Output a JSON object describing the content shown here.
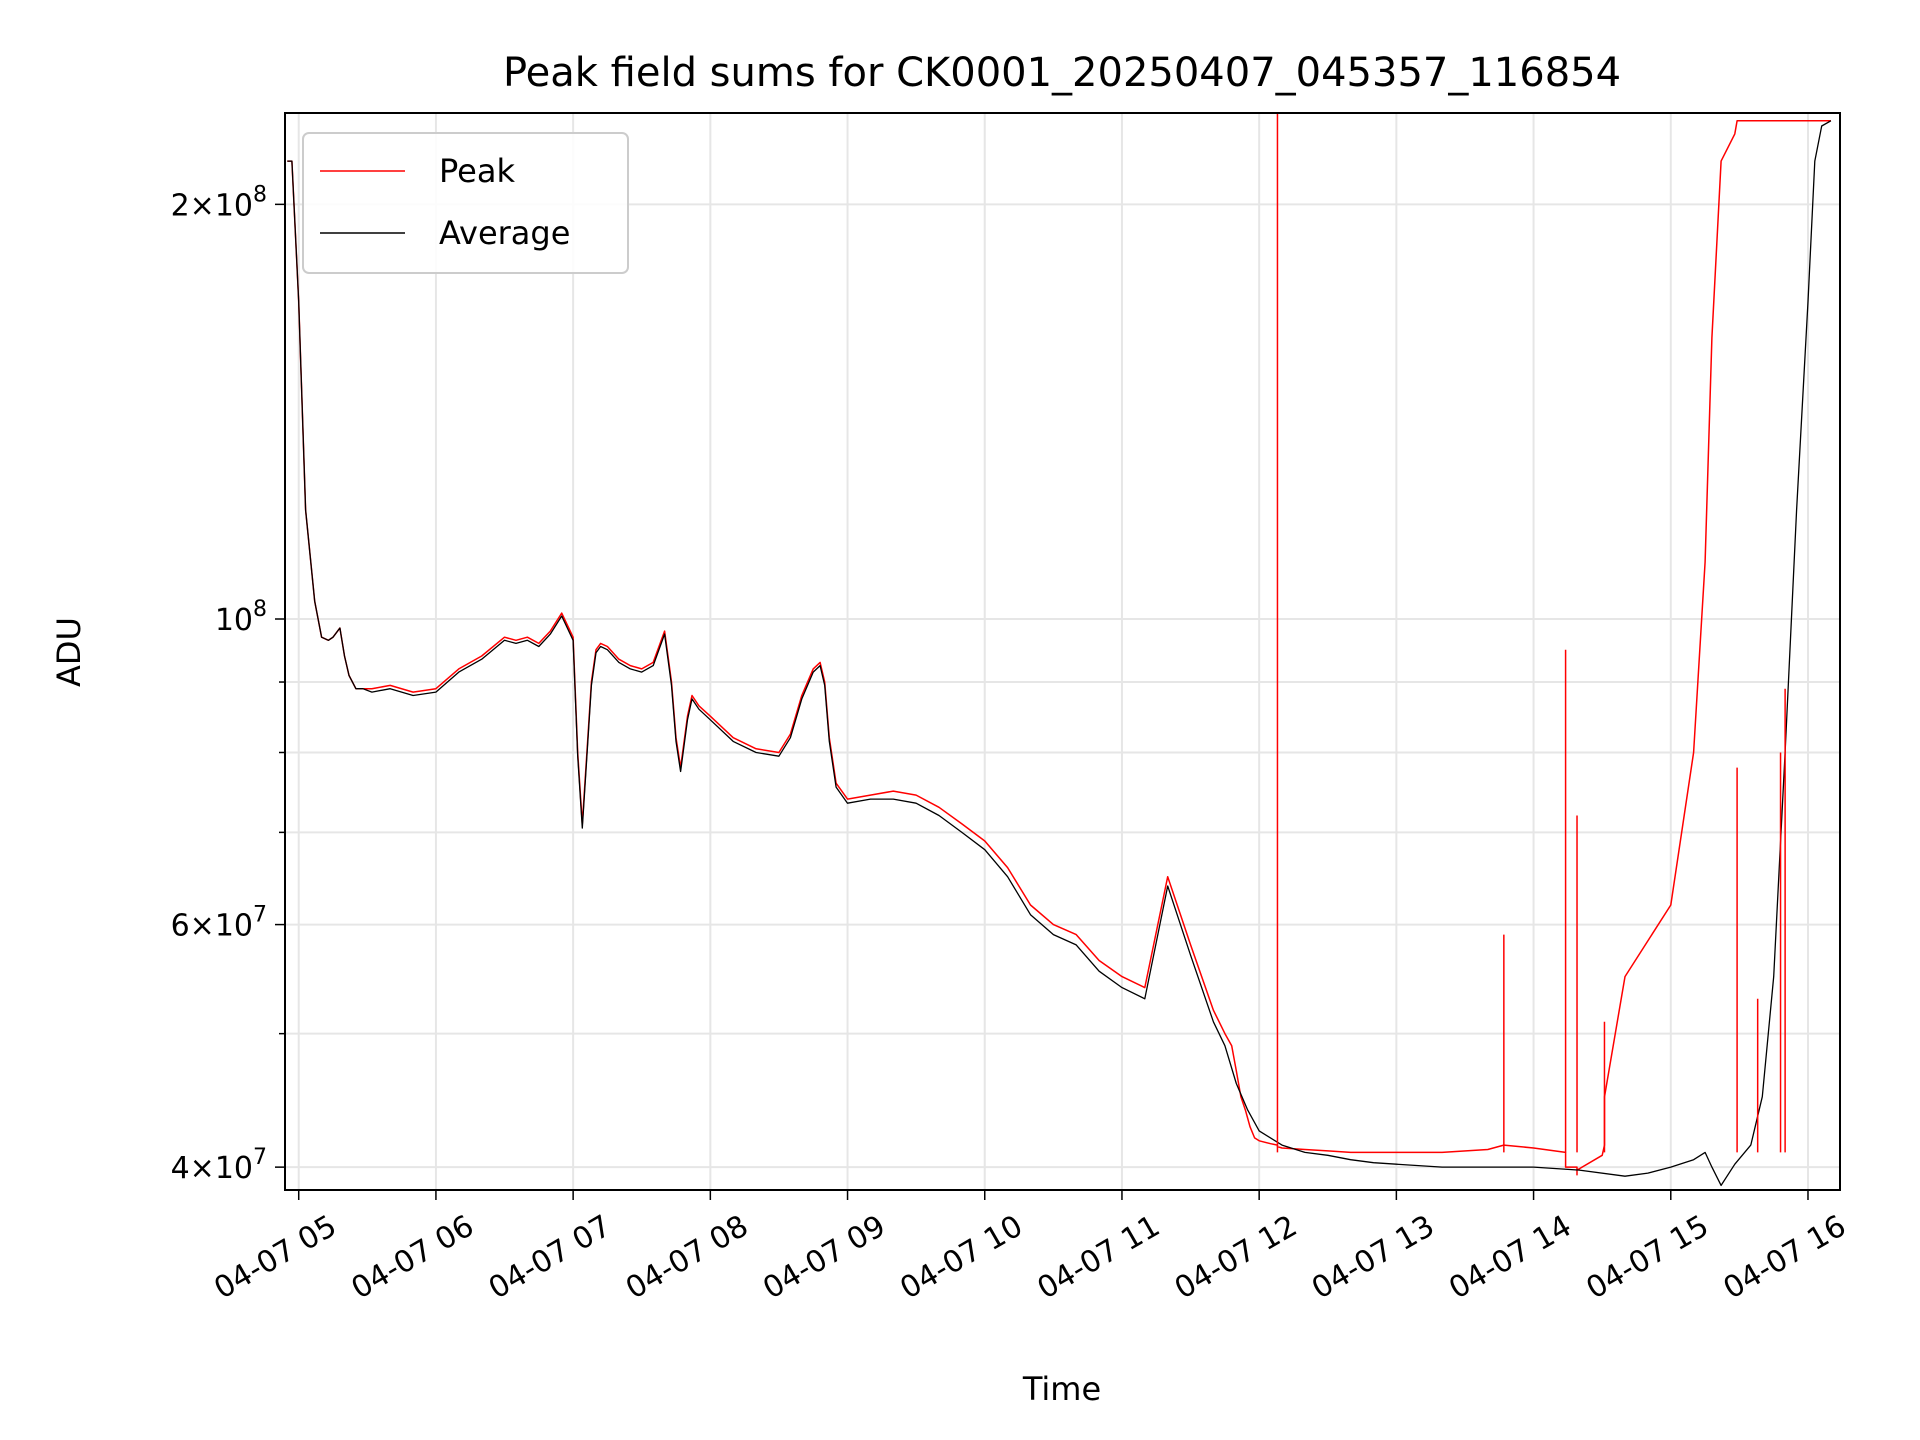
{
  "chart_data": {
    "type": "line",
    "title": "Peak field sums for CK0001_20250407_045357_116854",
    "xlabel": "Time",
    "ylabel": "ADU",
    "yscale": "log",
    "xlim": [
      "04-07 04:54",
      "04-07 16:14"
    ],
    "ylim": [
      38500000,
      233000000
    ],
    "grid": true,
    "legend_position": "top-left",
    "x_ticks": [
      "04-07 05",
      "04-07 06",
      "04-07 07",
      "04-07 08",
      "04-07 09",
      "04-07 10",
      "04-07 11",
      "04-07 12",
      "04-07 13",
      "04-07 14",
      "04-07 15",
      "04-07 16"
    ],
    "y_ticks": [
      {
        "value": 40000000,
        "mantissa": "4",
        "exponent": "7"
      },
      {
        "value": 60000000,
        "mantissa": "6",
        "exponent": "7"
      },
      {
        "value": 100000000,
        "mantissa": "",
        "exponent": "8"
      },
      {
        "value": 200000000,
        "mantissa": "2",
        "exponent": "8"
      }
    ],
    "series": [
      {
        "name": "Peak",
        "color": "#ff0000",
        "x": [
          "04-07 04:55",
          "04-07 04:57",
          "04-07 05:00",
          "04-07 05:03",
          "04-07 05:07",
          "04-07 05:10",
          "04-07 05:13",
          "04-07 05:15",
          "04-07 05:18",
          "04-07 05:20",
          "04-07 05:22",
          "04-07 05:25",
          "04-07 05:28",
          "04-07 05:32",
          "04-07 05:40",
          "04-07 05:50",
          "04-07 06:00",
          "04-07 06:10",
          "04-07 06:20",
          "04-07 06:30",
          "04-07 06:35",
          "04-07 06:40",
          "04-07 06:45",
          "04-07 06:50",
          "04-07 06:55",
          "04-07 07:00",
          "04-07 07:02",
          "04-07 07:04",
          "04-07 07:06",
          "04-07 07:08",
          "04-07 07:10",
          "04-07 07:12",
          "04-07 07:15",
          "04-07 07:20",
          "04-07 07:25",
          "04-07 07:30",
          "04-07 07:35",
          "04-07 07:40",
          "04-07 07:43",
          "04-07 07:45",
          "04-07 07:47",
          "04-07 07:50",
          "04-07 07:52",
          "04-07 07:55",
          "04-07 08:00",
          "04-07 08:10",
          "04-07 08:20",
          "04-07 08:30",
          "04-07 08:35",
          "04-07 08:40",
          "04-07 08:45",
          "04-07 08:48",
          "04-07 08:50",
          "04-07 08:52",
          "04-07 08:55",
          "04-07 09:00",
          "04-07 09:10",
          "04-07 09:20",
          "04-07 09:30",
          "04-07 09:40",
          "04-07 09:50",
          "04-07 10:00",
          "04-07 10:10",
          "04-07 10:20",
          "04-07 10:30",
          "04-07 10:40",
          "04-07 10:50",
          "04-07 11:00",
          "04-07 11:10",
          "04-07 11:20",
          "04-07 11:30",
          "04-07 11:40",
          "04-07 11:45",
          "04-07 11:48",
          "04-07 11:50",
          "04-07 11:52",
          "04-07 11:54",
          "04-07 11:56",
          "04-07 11:58",
          "04-07 12:00",
          "04-07 12:05",
          "04-07 12:08",
          "04-07 12:08",
          "04-07 12:08",
          "04-07 12:10",
          "04-07 12:20",
          "04-07 12:30",
          "04-07 12:40",
          "04-07 12:50",
          "04-07 13:00",
          "04-07 13:20",
          "04-07 13:40",
          "04-07 13:47",
          "04-07 13:47",
          "04-07 13:47",
          "04-07 14:00",
          "04-07 14:14",
          "04-07 14:14",
          "04-07 14:14",
          "04-07 14:19",
          "04-07 14:19",
          "04-07 14:19",
          "04-07 14:30",
          "04-07 14:31",
          "04-07 14:31",
          "04-07 14:31",
          "04-07 14:40",
          "04-07 15:00",
          "04-07 15:10",
          "04-07 15:15",
          "04-07 15:18",
          "04-07 15:22",
          "04-07 15:28",
          "04-07 15:29",
          "04-07 15:29",
          "04-07 15:29",
          "04-07 15:35",
          "04-07 15:38",
          "04-07 15:38",
          "04-07 15:38",
          "04-07 15:42",
          "04-07 15:46",
          "04-07 15:48",
          "04-07 15:50",
          "04-07 15:55",
          "04-07 16:00",
          "04-07 16:03",
          "04-07 16:06",
          "04-07 16:10"
        ],
        "y": [
          215000000,
          215000000,
          170000000,
          120000000,
          103000000,
          97000000,
          96500000,
          97000000,
          98500000,
          94000000,
          91000000,
          89000000,
          89000000,
          89000000,
          89500000,
          88500000,
          89000000,
          92000000,
          94000000,
          97000000,
          96500000,
          97000000,
          96000000,
          98000000,
          101000000,
          97000000,
          80000000,
          71000000,
          80000000,
          90000000,
          95000000,
          96000000,
          95500000,
          93500000,
          92500000,
          92000000,
          93000000,
          98000000,
          90000000,
          82000000,
          78000000,
          85000000,
          88000000,
          86500000,
          85000000,
          82000000,
          80500000,
          80000000,
          82500000,
          88000000,
          92000000,
          93000000,
          90000000,
          82000000,
          76000000,
          74000000,
          74500000,
          75000000,
          74500000,
          73000000,
          71000000,
          69000000,
          66000000,
          62000000,
          60000000,
          59000000,
          56500000,
          55000000,
          54000000,
          65000000,
          58000000,
          52000000,
          50000000,
          49000000,
          47000000,
          45000000,
          44000000,
          42800000,
          42000000,
          41800000,
          41600000,
          41500000,
          41500000,
          41400000,
          41300000,
          41200000,
          41100000,
          41000000,
          41000000,
          41000000,
          41000000,
          41200000,
          41500000,
          41500000,
          41500000,
          41300000,
          41000000,
          41000000,
          40000000,
          40000000,
          39500000,
          39800000,
          40800000,
          41500000,
          42500000,
          45000000,
          55000000,
          62000000,
          80000000,
          110000000,
          160000000,
          215000000,
          225000000,
          230000000,
          230000000,
          230000000,
          230000000,
          230000000,
          230000000,
          230000000,
          230000000,
          230000000,
          230000000,
          230000000,
          230000000,
          230000000,
          230000000,
          230000000,
          230000000
        ]
      },
      {
        "name": "Average",
        "color": "#000000",
        "x": [
          "04-07 04:55",
          "04-07 04:57",
          "04-07 05:00",
          "04-07 05:03",
          "04-07 05:07",
          "04-07 05:10",
          "04-07 05:13",
          "04-07 05:15",
          "04-07 05:18",
          "04-07 05:20",
          "04-07 05:22",
          "04-07 05:25",
          "04-07 05:28",
          "04-07 05:32",
          "04-07 05:40",
          "04-07 05:50",
          "04-07 06:00",
          "04-07 06:10",
          "04-07 06:20",
          "04-07 06:30",
          "04-07 06:35",
          "04-07 06:40",
          "04-07 06:45",
          "04-07 06:50",
          "04-07 06:55",
          "04-07 07:00",
          "04-07 07:02",
          "04-07 07:04",
          "04-07 07:06",
          "04-07 07:08",
          "04-07 07:10",
          "04-07 07:12",
          "04-07 07:15",
          "04-07 07:20",
          "04-07 07:25",
          "04-07 07:30",
          "04-07 07:35",
          "04-07 07:40",
          "04-07 07:43",
          "04-07 07:45",
          "04-07 07:47",
          "04-07 07:50",
          "04-07 07:52",
          "04-07 07:55",
          "04-07 08:00",
          "04-07 08:10",
          "04-07 08:20",
          "04-07 08:30",
          "04-07 08:35",
          "04-07 08:40",
          "04-07 08:45",
          "04-07 08:48",
          "04-07 08:50",
          "04-07 08:52",
          "04-07 08:55",
          "04-07 09:00",
          "04-07 09:10",
          "04-07 09:20",
          "04-07 09:30",
          "04-07 09:40",
          "04-07 09:50",
          "04-07 10:00",
          "04-07 10:10",
          "04-07 10:20",
          "04-07 10:30",
          "04-07 10:40",
          "04-07 10:50",
          "04-07 11:00",
          "04-07 11:10",
          "04-07 11:20",
          "04-07 11:30",
          "04-07 11:40",
          "04-07 11:45",
          "04-07 11:50",
          "04-07 11:55",
          "04-07 12:00",
          "04-07 12:10",
          "04-07 12:20",
          "04-07 12:30",
          "04-07 12:40",
          "04-07 12:50",
          "04-07 13:00",
          "04-07 13:20",
          "04-07 13:40",
          "04-07 14:00",
          "04-07 14:20",
          "04-07 14:40",
          "04-07 14:50",
          "04-07 15:00",
          "04-07 15:10",
          "04-07 15:15",
          "04-07 15:18",
          "04-07 15:22",
          "04-07 15:28",
          "04-07 15:35",
          "04-07 15:40",
          "04-07 15:45",
          "04-07 15:50",
          "04-07 15:55",
          "04-07 16:00",
          "04-07 16:03",
          "04-07 16:06",
          "04-07 16:10"
        ],
        "y": [
          215000000,
          215000000,
          170000000,
          120000000,
          103000000,
          97000000,
          96500000,
          97000000,
          98500000,
          94000000,
          91000000,
          89000000,
          89000000,
          88500000,
          89000000,
          88000000,
          88500000,
          91500000,
          93500000,
          96500000,
          96000000,
          96500000,
          95500000,
          97500000,
          100500000,
          96500000,
          79500000,
          70500000,
          79500000,
          89500000,
          94500000,
          95500000,
          95000000,
          93000000,
          92000000,
          91500000,
          92500000,
          97500000,
          89500000,
          81500000,
          77500000,
          84500000,
          87500000,
          86000000,
          84500000,
          81500000,
          80000000,
          79500000,
          82000000,
          87500000,
          91500000,
          92500000,
          89500000,
          81500000,
          75500000,
          73500000,
          74000000,
          74000000,
          73500000,
          72000000,
          70000000,
          68000000,
          65000000,
          61000000,
          59000000,
          58000000,
          55500000,
          54000000,
          53000000,
          64000000,
          57000000,
          51000000,
          49000000,
          46000000,
          44000000,
          42500000,
          41500000,
          41000000,
          40800000,
          40500000,
          40300000,
          40200000,
          40000000,
          40000000,
          40000000,
          39800000,
          39400000,
          39600000,
          40000000,
          40500000,
          41000000,
          40000000,
          38800000,
          40200000,
          41500000,
          45000000,
          55000000,
          80000000,
          120000000,
          170000000,
          215000000,
          228000000,
          230000000
        ]
      }
    ],
    "spikes": {
      "series": "Peak",
      "color": "#ff0000",
      "x": [
        "04-07 12:08",
        "04-07 13:47",
        "04-07 14:14",
        "04-07 14:19",
        "04-07 14:31",
        "04-07 15:29",
        "04-07 15:38",
        "04-07 15:48",
        "04-07 15:50"
      ],
      "y": [
        233000000,
        59000000,
        95000000,
        72000000,
        51000000,
        78000000,
        53000000,
        80000000,
        89000000
      ]
    }
  }
}
